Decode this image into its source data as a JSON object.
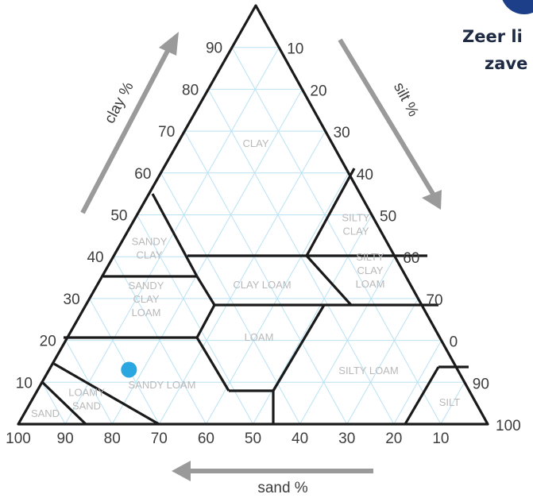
{
  "header": {
    "line1": "Zeer li",
    "line2": "zave"
  },
  "axes": {
    "clay_label": "clay %",
    "silt_label": "silt %",
    "sand_label": "sand %",
    "clay_ticks": [
      "10",
      "20",
      "30",
      "40",
      "50",
      "60",
      "70",
      "80",
      "90"
    ],
    "silt_ticks": [
      "10",
      "20",
      "30",
      "40",
      "50",
      "60",
      "70",
      "0",
      "90",
      "100"
    ],
    "sand_ticks": [
      "100",
      "90",
      "80",
      "70",
      "60",
      "50",
      "40",
      "30",
      "20",
      "10"
    ]
  },
  "regions": [
    {
      "id": "clay",
      "lines": [
        "CLAY"
      ]
    },
    {
      "id": "silty-clay",
      "lines": [
        "SILTY",
        "CLAY"
      ]
    },
    {
      "id": "sandy-clay",
      "lines": [
        "SANDY",
        "CLAY"
      ]
    },
    {
      "id": "clay-loam",
      "lines": [
        "CLAY LOAM"
      ]
    },
    {
      "id": "silty-clay-loam",
      "lines": [
        "SILTY",
        "CLAY",
        "LOAM"
      ]
    },
    {
      "id": "sandy-clay-loam",
      "lines": [
        "SANDY",
        "CLAY",
        "LOAM"
      ]
    },
    {
      "id": "loam",
      "lines": [
        "LOAM"
      ]
    },
    {
      "id": "silty-loam",
      "lines": [
        "SILTY LOAM"
      ]
    },
    {
      "id": "sandy-loam",
      "lines": [
        "SANDY LOAM"
      ]
    },
    {
      "id": "loamy-sand",
      "lines": [
        "LOAMY",
        "SAND"
      ]
    },
    {
      "id": "sand",
      "lines": [
        "SAND"
      ]
    },
    {
      "id": "silt",
      "lines": [
        "SILT"
      ]
    }
  ],
  "sample_point": {
    "sand": 70,
    "silt": 17,
    "clay": 13
  },
  "colors": {
    "grid": "#b9e2f3",
    "boundary": "#1a1a1a",
    "arrow": "#9a9a9a",
    "point": "#2aa6e0",
    "region_text": "#b9b9b9",
    "corner_badge": "#1d3f8a"
  }
}
